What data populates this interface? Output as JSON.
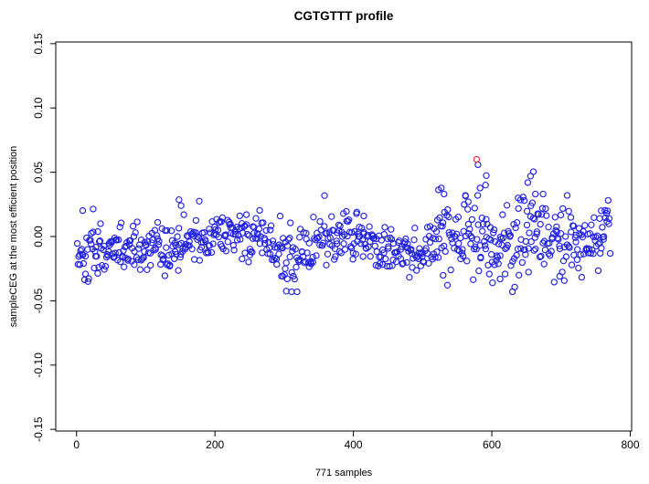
{
  "chart_data": {
    "type": "scatter",
    "title": "CGTGTTT profile",
    "xlabel": "771 samples",
    "ylabel": "sampleCEG at the most efficient position",
    "n_samples": 771,
    "x_ticks": [
      0,
      200,
      400,
      600,
      800
    ],
    "y_ticks": [
      -0.15,
      -0.1,
      -0.05,
      0.0,
      0.05,
      0.1,
      0.15
    ],
    "xlim": [
      -30,
      802
    ],
    "ylim": [
      -0.1513,
      0.1513
    ],
    "grid": false,
    "legend": false,
    "marker": {
      "shape": "open-circle",
      "radius": 3.1,
      "stroke_width": 1.15
    },
    "colors": {
      "points": "#2222dd",
      "highlight": "#ee3333",
      "axis": "#000000",
      "text": "#000000",
      "background": "#ffffff"
    },
    "highlight_point": {
      "x": 578,
      "y": 0.06,
      "color_name": "red"
    },
    "outlier_points": [
      [
        9,
        0.0202
      ],
      [
        24,
        0.0214
      ],
      [
        148,
        0.0286
      ],
      [
        151,
        0.024
      ],
      [
        298,
        -0.031
      ],
      [
        303,
        -0.0425
      ],
      [
        311,
        -0.028
      ],
      [
        405,
        0.019
      ],
      [
        415,
        0.016
      ],
      [
        523,
        0.0363
      ],
      [
        527,
        0.0377
      ],
      [
        531,
        0.033
      ],
      [
        562,
        0.0315
      ],
      [
        566,
        0.027
      ],
      [
        580,
        0.0558
      ],
      [
        583,
        0.0377
      ],
      [
        591,
        0.04
      ],
      [
        592,
        0.0474
      ],
      [
        601,
        -0.036
      ],
      [
        612,
        -0.033
      ],
      [
        638,
        0.03
      ],
      [
        647,
        0.028
      ],
      [
        652,
        0.042
      ],
      [
        656,
        0.047
      ],
      [
        660,
        0.0504
      ],
      [
        663,
        0.033
      ],
      [
        674,
        0.033
      ],
      [
        698,
        -0.031
      ],
      [
        758,
        0.02
      ],
      [
        766,
        0.018
      ]
    ],
    "bulk": {
      "seed": 20240771,
      "count": 740,
      "x_start": 1,
      "x_end": 771,
      "clip": [
        -0.043,
        0.032
      ],
      "trend": [
        [
          1,
          -0.012,
          0.009
        ],
        [
          30,
          -0.014,
          0.008
        ],
        [
          60,
          -0.009,
          0.009
        ],
        [
          100,
          -0.011,
          0.008
        ],
        [
          140,
          -0.008,
          0.01
        ],
        [
          175,
          -0.004,
          0.011
        ],
        [
          205,
          0.003,
          0.008
        ],
        [
          245,
          0.004,
          0.009
        ],
        [
          270,
          -0.004,
          0.009
        ],
        [
          300,
          -0.013,
          0.011
        ],
        [
          330,
          -0.009,
          0.011
        ],
        [
          360,
          -0.003,
          0.01
        ],
        [
          395,
          0.001,
          0.009
        ],
        [
          420,
          -0.005,
          0.004
        ],
        [
          450,
          -0.01,
          0.009
        ],
        [
          480,
          -0.012,
          0.009
        ],
        [
          510,
          -0.006,
          0.011
        ],
        [
          545,
          -0.001,
          0.013
        ],
        [
          575,
          0.003,
          0.015
        ],
        [
          605,
          -0.009,
          0.013
        ],
        [
          635,
          -0.004,
          0.015
        ],
        [
          660,
          0.004,
          0.015
        ],
        [
          690,
          -0.006,
          0.012
        ],
        [
          720,
          -0.004,
          0.011
        ],
        [
          750,
          0.0,
          0.01
        ],
        [
          771,
          0.008,
          0.008
        ]
      ]
    }
  }
}
